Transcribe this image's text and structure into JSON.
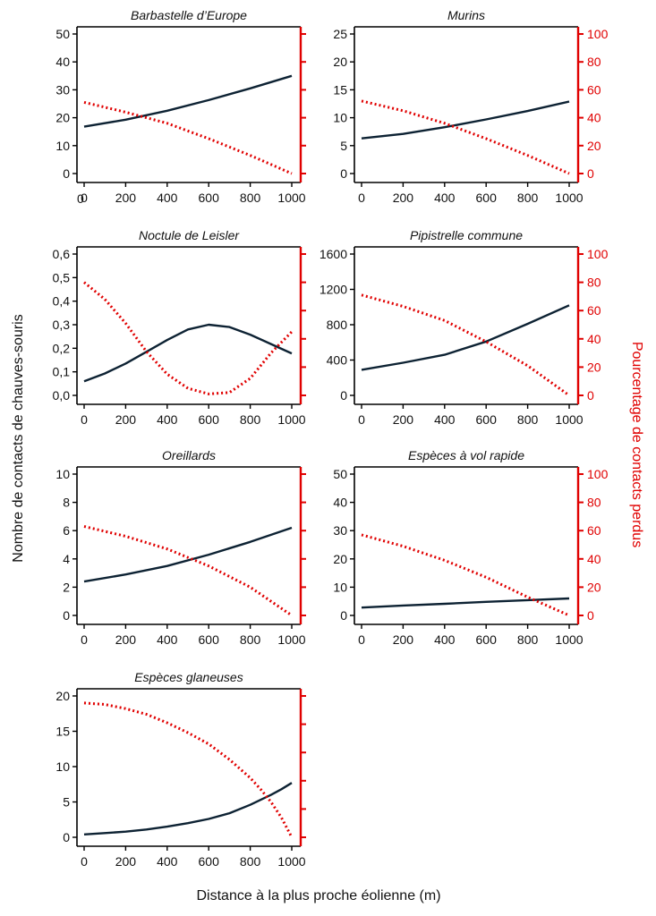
{
  "figure": {
    "xlabel": "Distance à la plus proche éolienne (m)",
    "ylabel_left": "Nombre de contacts de chauves-souris",
    "ylabel_right": "Pourcentage de contacts perdus",
    "stray_label": "0",
    "colors": {
      "count_line": "#0d2233",
      "loss_line": "#e00000",
      "axis_left": "#000000",
      "axis_right": "#e00000"
    }
  },
  "chart_data": [
    {
      "type": "line",
      "title": "Barbastelle d’Europe",
      "xlim": [
        0,
        1000
      ],
      "x_ticks": [
        "0",
        "200",
        "400",
        "600",
        "800",
        "1000"
      ],
      "ylim_left": [
        0,
        50
      ],
      "y_ticks_left": [
        "0",
        "10",
        "20",
        "30",
        "40",
        "50"
      ],
      "ylim_right": [
        0,
        100
      ],
      "y_ticks_right": [],
      "series": [
        {
          "name": "Nombre de contacts",
          "axis": "left",
          "x": [
            0,
            200,
            400,
            600,
            800,
            1000
          ],
          "values": [
            16.8,
            19.3,
            22.5,
            26.3,
            30.5,
            35
          ]
        },
        {
          "name": "Pourcentage de contacts perdus",
          "axis": "right",
          "x": [
            0,
            200,
            400,
            600,
            800,
            1000
          ],
          "values": [
            51,
            44,
            36,
            25,
            13,
            0
          ]
        }
      ]
    },
    {
      "type": "line",
      "title": "Murins",
      "xlim": [
        0,
        1000
      ],
      "x_ticks": [
        "0",
        "200",
        "400",
        "600",
        "800",
        "1000"
      ],
      "ylim_left": [
        0,
        25
      ],
      "y_ticks_left": [
        "0",
        "5",
        "10",
        "15",
        "20",
        "25"
      ],
      "ylim_right": [
        0,
        100
      ],
      "y_ticks_right": [
        "0",
        "20",
        "40",
        "60",
        "80",
        "100"
      ],
      "series": [
        {
          "name": "Nombre de contacts",
          "axis": "left",
          "x": [
            0,
            200,
            400,
            600,
            800,
            1000
          ],
          "values": [
            6.3,
            7.1,
            8.3,
            9.7,
            11.2,
            12.9
          ]
        },
        {
          "name": "Pourcentage de contacts perdus",
          "axis": "right",
          "x": [
            0,
            200,
            400,
            600,
            800,
            1000
          ],
          "values": [
            52,
            45,
            36,
            25,
            13,
            0
          ]
        }
      ]
    },
    {
      "type": "line",
      "title": "Noctule de Leisler",
      "xlim": [
        0,
        1000
      ],
      "x_ticks": [
        "0",
        "200",
        "400",
        "600",
        "800",
        "1000"
      ],
      "ylim_left": [
        0,
        0.6
      ],
      "y_ticks_left": [
        "0,0",
        "0,1",
        "0,2",
        "0,3",
        "0,4",
        "0,5",
        "0,6"
      ],
      "ylim_right": [
        0,
        100
      ],
      "y_ticks_right": [],
      "series": [
        {
          "name": "Nombre de contacts",
          "axis": "left",
          "x": [
            0,
            100,
            200,
            300,
            400,
            500,
            600,
            700,
            800,
            900,
            1000
          ],
          "values": [
            0.06,
            0.093,
            0.135,
            0.185,
            0.235,
            0.28,
            0.3,
            0.29,
            0.258,
            0.218,
            0.178
          ]
        },
        {
          "name": "Pourcentage de contacts perdus",
          "axis": "right",
          "x": [
            0,
            100,
            200,
            300,
            400,
            500,
            600,
            700,
            800,
            900,
            1000
          ],
          "values": [
            80,
            68,
            51,
            31,
            15,
            5,
            1,
            2,
            12,
            30,
            45
          ]
        }
      ]
    },
    {
      "type": "line",
      "title": "Pipistrelle commune",
      "xlim": [
        0,
        1000
      ],
      "x_ticks": [
        "0",
        "200",
        "400",
        "600",
        "800",
        "1000"
      ],
      "ylim_left": [
        0,
        1600
      ],
      "y_ticks_left": [
        "0",
        "400",
        "800",
        "1200",
        "1600"
      ],
      "ylim_right": [
        0,
        100
      ],
      "y_ticks_right": [
        "0",
        "20",
        "40",
        "60",
        "80",
        "100"
      ],
      "series": [
        {
          "name": "Nombre de contacts",
          "axis": "left",
          "x": [
            0,
            200,
            400,
            600,
            800,
            1000
          ],
          "values": [
            290,
            370,
            460,
            610,
            810,
            1020
          ]
        },
        {
          "name": "Pourcentage de contacts perdus",
          "axis": "right",
          "x": [
            0,
            200,
            400,
            600,
            800,
            1000
          ],
          "values": [
            71,
            63,
            53,
            38,
            21,
            0
          ]
        }
      ]
    },
    {
      "type": "line",
      "title": "Oreillards",
      "xlim": [
        0,
        1000
      ],
      "x_ticks": [
        "0",
        "200",
        "400",
        "600",
        "800",
        "1000"
      ],
      "ylim_left": [
        0,
        10
      ],
      "y_ticks_left": [
        "0",
        "2",
        "4",
        "6",
        "8",
        "10"
      ],
      "ylim_right": [
        0,
        100
      ],
      "y_ticks_right": [],
      "series": [
        {
          "name": "Nombre de contacts",
          "axis": "left",
          "x": [
            0,
            200,
            400,
            600,
            800,
            1000
          ],
          "values": [
            2.4,
            2.9,
            3.5,
            4.3,
            5.2,
            6.2
          ]
        },
        {
          "name": "Pourcentage de contacts perdus",
          "axis": "right",
          "x": [
            0,
            200,
            400,
            600,
            800,
            1000
          ],
          "values": [
            63,
            56,
            47,
            35,
            20,
            0
          ]
        }
      ]
    },
    {
      "type": "line",
      "title": "Espèces à vol rapide",
      "xlim": [
        0,
        1000
      ],
      "x_ticks": [
        "0",
        "200",
        "400",
        "600",
        "800",
        "1000"
      ],
      "ylim_left": [
        0,
        50
      ],
      "y_ticks_left": [
        "0",
        "10",
        "20",
        "30",
        "40",
        "50"
      ],
      "ylim_right": [
        0,
        100
      ],
      "y_ticks_right": [
        "0",
        "20",
        "40",
        "60",
        "80",
        "100"
      ],
      "series": [
        {
          "name": "Nombre de contacts",
          "axis": "left",
          "x": [
            0,
            200,
            400,
            600,
            800,
            1000
          ],
          "values": [
            2.8,
            3.5,
            4.1,
            4.8,
            5.4,
            6.0
          ]
        },
        {
          "name": "Pourcentage de contacts perdus",
          "axis": "right",
          "x": [
            0,
            200,
            400,
            600,
            800,
            1000
          ],
          "values": [
            57,
            49,
            39,
            27,
            13,
            0
          ]
        }
      ]
    },
    {
      "type": "line",
      "title": "Espèces glaneuses",
      "xlim": [
        0,
        1000
      ],
      "x_ticks": [
        "0",
        "200",
        "400",
        "600",
        "800",
        "1000"
      ],
      "ylim_left": [
        0,
        20
      ],
      "y_ticks_left": [
        "0",
        "5",
        "10",
        "15",
        "20"
      ],
      "ylim_right": [
        0,
        100
      ],
      "y_ticks_right": [],
      "series": [
        {
          "name": "Nombre de contacts",
          "axis": "left",
          "x": [
            0,
            100,
            200,
            300,
            400,
            500,
            600,
            700,
            800,
            900,
            950,
            1000
          ],
          "values": [
            0.4,
            0.6,
            0.8,
            1.1,
            1.5,
            2.0,
            2.6,
            3.4,
            4.6,
            6.0,
            6.8,
            7.7
          ]
        },
        {
          "name": "Pourcentage de contacts perdus",
          "axis": "right",
          "x": [
            0,
            100,
            200,
            300,
            400,
            500,
            600,
            700,
            800,
            850,
            900,
            950,
            1000
          ],
          "values": [
            95,
            94,
            91,
            87,
            81,
            74,
            66,
            55,
            42,
            34,
            25,
            14,
            0
          ]
        }
      ]
    }
  ]
}
